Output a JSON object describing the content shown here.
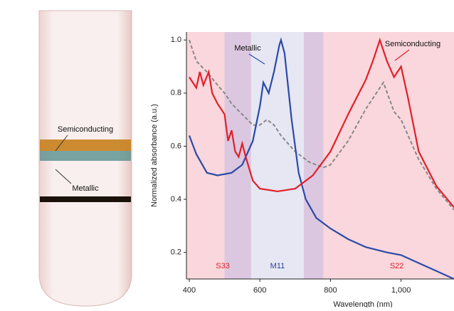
{
  "tube_labels": [
    "Semiconducting",
    "Metallic"
  ],
  "chart_data": {
    "type": "line",
    "xlabel": "Wavelength (nm)",
    "ylabel": "Normalized absorbance (a.u.)",
    "xlim": [
      392,
      1150
    ],
    "ylim": [
      0.1,
      1.03
    ],
    "xticks": [
      400,
      600,
      800,
      {
        "value": 1000,
        "label": "1,000"
      }
    ],
    "yticks": [
      {
        "value": 1,
        "label": "1.0"
      },
      0.8,
      0.6,
      0.4,
      0.2
    ],
    "background": "#f9d7dc",
    "bands": [
      {
        "range": [
          500,
          575
        ],
        "color": "#dcc7e0"
      },
      {
        "range": [
          575,
          725
        ],
        "color": "#e6e7f3"
      },
      {
        "range": [
          725,
          780
        ],
        "color": "#dcc7e0"
      }
    ],
    "band_labels": [
      {
        "text": "S33",
        "x": 495,
        "color": "#e0202a"
      },
      {
        "text": "M11",
        "x": 650,
        "color": "#2a3f9a"
      },
      {
        "text": "S22",
        "x": 988,
        "color": "#e0202a"
      }
    ],
    "series": [
      {
        "color": "#888888",
        "dashed": true,
        "x": [
          400,
          420,
          450,
          480,
          500,
          520,
          550,
          580,
          600,
          620,
          640,
          660,
          700,
          740,
          780,
          800,
          850,
          900,
          930,
          950,
          980,
          1000,
          1050,
          1100,
          1150
        ],
        "values": [
          1.0,
          0.92,
          0.88,
          0.83,
          0.8,
          0.76,
          0.72,
          0.68,
          0.68,
          0.7,
          0.68,
          0.64,
          0.58,
          0.54,
          0.52,
          0.53,
          0.62,
          0.74,
          0.8,
          0.84,
          0.73,
          0.7,
          0.55,
          0.44,
          0.36
        ]
      },
      {
        "name": "Metallic",
        "color": "#2a4aa8",
        "x": [
          400,
          420,
          450,
          480,
          520,
          550,
          580,
          600,
          610,
          625,
          640,
          655,
          660,
          670,
          690,
          710,
          730,
          760,
          800,
          850,
          900,
          960,
          1000,
          1050,
          1100,
          1150
        ],
        "values": [
          0.64,
          0.57,
          0.5,
          0.49,
          0.5,
          0.53,
          0.62,
          0.75,
          0.84,
          0.8,
          0.88,
          0.98,
          1.0,
          0.95,
          0.7,
          0.5,
          0.4,
          0.33,
          0.29,
          0.25,
          0.22,
          0.2,
          0.19,
          0.16,
          0.13,
          0.1
        ]
      },
      {
        "name": "Semiconducting",
        "color": "#e0202a",
        "x": [
          400,
          410,
          420,
          430,
          440,
          455,
          465,
          480,
          500,
          510,
          520,
          530,
          540,
          550,
          560,
          580,
          600,
          650,
          700,
          750,
          800,
          850,
          900,
          920,
          940,
          960,
          980,
          1000,
          1020,
          1050,
          1100,
          1150
        ],
        "values": [
          0.86,
          0.84,
          0.82,
          0.88,
          0.83,
          0.88,
          0.8,
          0.76,
          0.72,
          0.62,
          0.66,
          0.58,
          0.56,
          0.61,
          0.56,
          0.47,
          0.44,
          0.43,
          0.44,
          0.49,
          0.58,
          0.72,
          0.85,
          0.92,
          1.0,
          0.92,
          0.86,
          0.9,
          0.78,
          0.58,
          0.45,
          0.37
        ]
      }
    ]
  }
}
